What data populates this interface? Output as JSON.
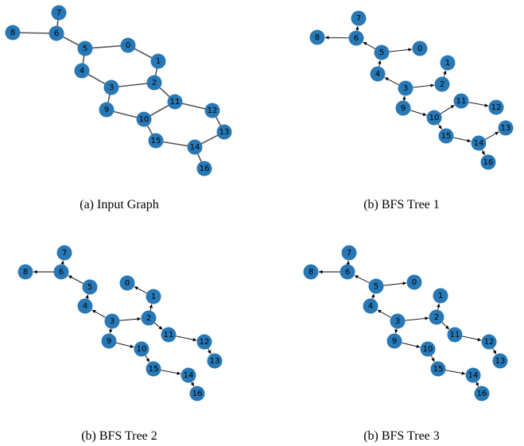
{
  "style": {
    "node_color": "#2878b5",
    "edge_color": "#555555",
    "arrow_color": "#000000"
  },
  "panels": [
    {
      "caption": "(a) Input Graph",
      "directed": false,
      "nodes": [
        "0",
        "1",
        "2",
        "3",
        "4",
        "5",
        "6",
        "7",
        "8",
        "9",
        "10",
        "11",
        "12",
        "13",
        "14",
        "15",
        "16"
      ],
      "edges": [
        [
          "7",
          "6"
        ],
        [
          "8",
          "6"
        ],
        [
          "6",
          "5"
        ],
        [
          "5",
          "0"
        ],
        [
          "0",
          "1"
        ],
        [
          "1",
          "2"
        ],
        [
          "5",
          "4"
        ],
        [
          "4",
          "3"
        ],
        [
          "3",
          "2"
        ],
        [
          "3",
          "9"
        ],
        [
          "2",
          "11"
        ],
        [
          "9",
          "10"
        ],
        [
          "10",
          "11"
        ],
        [
          "11",
          "12"
        ],
        [
          "12",
          "13"
        ],
        [
          "10",
          "15"
        ],
        [
          "15",
          "14"
        ],
        [
          "13",
          "14"
        ],
        [
          "14",
          "16"
        ]
      ]
    },
    {
      "caption": "(b) BFS Tree 1",
      "directed": true,
      "nodes": [
        "0",
        "1",
        "2",
        "3",
        "4",
        "5",
        "6",
        "7",
        "8",
        "9",
        "10",
        "11",
        "12",
        "13",
        "14",
        "15",
        "16"
      ],
      "edges": [
        [
          "6",
          "7"
        ],
        [
          "6",
          "8"
        ],
        [
          "5",
          "6"
        ],
        [
          "5",
          "0"
        ],
        [
          "4",
          "5"
        ],
        [
          "3",
          "4"
        ],
        [
          "3",
          "2"
        ],
        [
          "2",
          "1"
        ],
        [
          "9",
          "3"
        ],
        [
          "9",
          "10"
        ],
        [
          "10",
          "11"
        ],
        [
          "11",
          "12"
        ],
        [
          "10",
          "15"
        ],
        [
          "15",
          "14"
        ],
        [
          "14",
          "13"
        ],
        [
          "14",
          "16"
        ]
      ]
    },
    {
      "caption": "(b) BFS Tree 2",
      "directed": true,
      "nodes": [
        "0",
        "1",
        "2",
        "3",
        "4",
        "5",
        "6",
        "7",
        "8",
        "9",
        "10",
        "11",
        "12",
        "13",
        "14",
        "15",
        "16"
      ],
      "edges": [
        [
          "6",
          "7"
        ],
        [
          "6",
          "8"
        ],
        [
          "5",
          "6"
        ],
        [
          "4",
          "5"
        ],
        [
          "3",
          "4"
        ],
        [
          "3",
          "2"
        ],
        [
          "2",
          "1"
        ],
        [
          "1",
          "0"
        ],
        [
          "3",
          "9"
        ],
        [
          "2",
          "11"
        ],
        [
          "11",
          "12"
        ],
        [
          "12",
          "13"
        ],
        [
          "9",
          "10"
        ],
        [
          "10",
          "15"
        ],
        [
          "15",
          "14"
        ],
        [
          "14",
          "16"
        ]
      ]
    },
    {
      "caption": "(b) BFS Tree 3",
      "directed": true,
      "nodes": [
        "0",
        "1",
        "2",
        "3",
        "4",
        "5",
        "6",
        "7",
        "8",
        "9",
        "10",
        "11",
        "12",
        "13",
        "14",
        "15",
        "16"
      ],
      "edges": [
        [
          "6",
          "7"
        ],
        [
          "6",
          "8"
        ],
        [
          "5",
          "6"
        ],
        [
          "5",
          "0"
        ],
        [
          "4",
          "5"
        ],
        [
          "3",
          "4"
        ],
        [
          "3",
          "2"
        ],
        [
          "2",
          "1"
        ],
        [
          "3",
          "9"
        ],
        [
          "2",
          "11"
        ],
        [
          "11",
          "12"
        ],
        [
          "12",
          "13"
        ],
        [
          "9",
          "10"
        ],
        [
          "10",
          "15"
        ],
        [
          "15",
          "14"
        ],
        [
          "14",
          "16"
        ]
      ]
    }
  ]
}
